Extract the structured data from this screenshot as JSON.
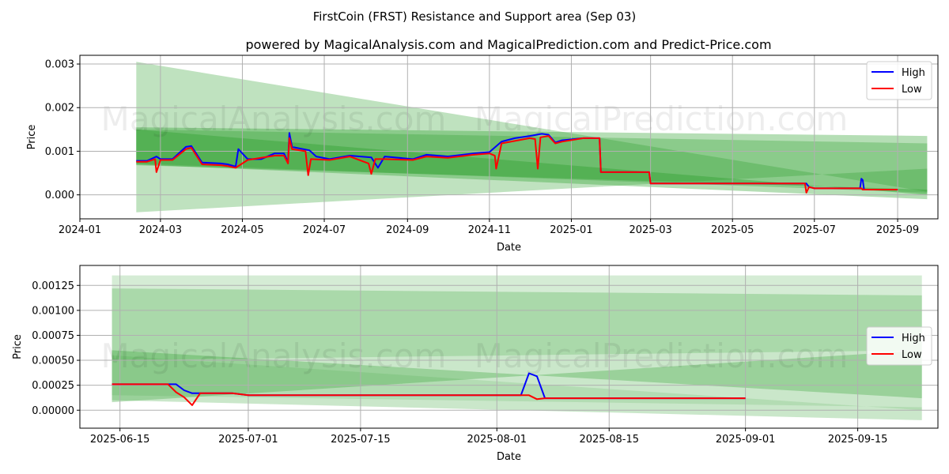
{
  "title": "FirstCoin (FRST) Resistance and Support area (Sep 03)",
  "subtitle": "powered by MagicalAnalysis.com and MagicalPrediction.com and Predict-Price.com",
  "watermark_left": "MagicalAnalysis.com",
  "watermark_right": "MagicalPrediction.com",
  "colors": {
    "high": "#0000ff",
    "low": "#ff0000",
    "band": "#2ca02c",
    "grid": "#b0b0b0"
  },
  "chart_data": [
    {
      "type": "line",
      "name": "full-range",
      "xlabel": "Date",
      "ylabel": "Price",
      "xlim": [
        "2024-01-01",
        "2025-10-01"
      ],
      "ylim": [
        -0.00055,
        0.0032
      ],
      "xticks": [
        "2024-01",
        "2024-03",
        "2024-05",
        "2024-07",
        "2024-09",
        "2024-11",
        "2025-01",
        "2025-03",
        "2025-05",
        "2025-07",
        "2025-09"
      ],
      "yticks": [
        0.0,
        0.001,
        0.002,
        0.003
      ],
      "ytick_labels": [
        "0.000",
        "0.001",
        "0.002",
        "0.003"
      ],
      "legend": {
        "position": "top-right",
        "entries": [
          "High",
          "Low"
        ]
      },
      "bands": [
        {
          "opacity": 0.3,
          "x0": "2024-02-12",
          "x1": "2025-09-23",
          "top": [
            0.00305,
            7e-05
          ],
          "bottom": [
            -0.0004,
            0.0006
          ]
        },
        {
          "opacity": 0.35,
          "x0": "2024-02-12",
          "x1": "2025-09-23",
          "top": [
            0.00155,
            0.00135
          ],
          "bottom": [
            0.0007,
            -0.0001
          ]
        },
        {
          "opacity": 0.3,
          "x0": "2024-02-12",
          "x1": "2025-09-23",
          "top": [
            0.0015,
            0.00118
          ],
          "bottom": [
            0.00072,
            5e-05
          ]
        },
        {
          "opacity": 0.4,
          "x0": "2024-02-12",
          "x1": "2025-09-23",
          "top": [
            0.0015,
            0.0
          ],
          "bottom": [
            0.00068,
            0.00012
          ]
        }
      ],
      "series": [
        {
          "name": "High",
          "x": [
            "2024-02-12",
            "2024-02-20",
            "2024-02-27",
            "2024-03-01",
            "2024-03-10",
            "2024-03-20",
            "2024-03-24",
            "2024-04-01",
            "2024-04-15",
            "2024-04-20",
            "2024-04-26",
            "2024-04-28",
            "2024-05-05",
            "2024-05-15",
            "2024-05-25",
            "2024-06-01",
            "2024-06-04",
            "2024-06-05",
            "2024-06-07",
            "2024-06-10",
            "2024-06-20",
            "2024-06-25",
            "2024-07-05",
            "2024-07-20",
            "2024-08-05",
            "2024-08-10",
            "2024-08-15",
            "2024-09-05",
            "2024-09-15",
            "2024-10-01",
            "2024-10-20",
            "2024-11-01",
            "2024-11-10",
            "2024-11-20",
            "2024-12-01",
            "2024-12-10",
            "2024-12-15",
            "2024-12-20",
            "2024-12-25",
            "2025-01-10",
            "2025-01-22",
            "2025-01-23",
            "2025-02-28",
            "2025-03-01",
            "2025-06-25",
            "2025-06-27",
            "2025-07-01",
            "2025-08-04",
            "2025-08-05",
            "2025-08-06",
            "2025-08-07",
            "2025-09-01"
          ],
          "values": [
            0.00078,
            0.00078,
            0.00088,
            0.00082,
            0.00082,
            0.0011,
            0.00112,
            0.00074,
            0.00072,
            0.0007,
            0.00065,
            0.00105,
            0.00082,
            0.00082,
            0.00095,
            0.00095,
            0.00075,
            0.00142,
            0.0011,
            0.00108,
            0.00102,
            0.00088,
            0.00082,
            0.0009,
            0.00086,
            0.00062,
            0.00088,
            0.00082,
            0.00092,
            0.00088,
            0.00095,
            0.00098,
            0.00122,
            0.0013,
            0.00135,
            0.0014,
            0.00138,
            0.0012,
            0.00125,
            0.0013,
            0.0013,
            0.00052,
            0.00052,
            0.00026,
            0.00026,
            0.00018,
            0.00015,
            0.00015,
            0.00037,
            0.00034,
            0.00012,
            0.00012
          ]
        },
        {
          "name": "Low",
          "x": [
            "2024-02-12",
            "2024-02-20",
            "2024-02-26",
            "2024-02-27",
            "2024-03-01",
            "2024-03-10",
            "2024-03-20",
            "2024-03-24",
            "2024-04-01",
            "2024-04-15",
            "2024-04-20",
            "2024-04-26",
            "2024-05-05",
            "2024-05-25",
            "2024-06-01",
            "2024-06-04",
            "2024-06-05",
            "2024-06-07",
            "2024-06-17",
            "2024-06-19",
            "2024-06-21",
            "2024-07-05",
            "2024-07-20",
            "2024-08-03",
            "2024-08-05",
            "2024-08-08",
            "2024-08-15",
            "2024-09-05",
            "2024-09-15",
            "2024-10-01",
            "2024-10-20",
            "2024-11-01",
            "2024-11-05",
            "2024-11-06",
            "2024-11-10",
            "2024-12-01",
            "2024-12-05",
            "2024-12-07",
            "2024-12-09",
            "2024-12-15",
            "2024-12-20",
            "2024-12-25",
            "2025-01-10",
            "2025-01-22",
            "2025-01-23",
            "2025-02-28",
            "2025-03-01",
            "2025-06-24",
            "2025-06-25",
            "2025-06-27",
            "2025-07-01",
            "2025-08-05",
            "2025-08-06",
            "2025-09-01"
          ],
          "values": [
            0.00076,
            0.00076,
            0.00082,
            0.00052,
            0.0008,
            0.0008,
            0.00105,
            0.00108,
            0.0007,
            0.00068,
            0.00066,
            0.00062,
            0.0008,
            0.0009,
            0.0009,
            0.00072,
            0.0013,
            0.00105,
            0.001,
            0.00045,
            0.00082,
            0.0008,
            0.00088,
            0.00072,
            0.00048,
            0.00082,
            0.00082,
            0.0008,
            0.00088,
            0.00085,
            0.00092,
            0.00095,
            0.0009,
            0.0006,
            0.00118,
            0.0013,
            0.00128,
            0.0006,
            0.00132,
            0.00135,
            0.00118,
            0.00122,
            0.0013,
            0.0013,
            0.00052,
            0.00052,
            0.00026,
            0.00026,
            5e-05,
            0.00018,
            0.00015,
            0.00015,
            0.00012,
            0.00012
          ]
        }
      ]
    },
    {
      "type": "line",
      "name": "zoomed",
      "xlabel": "Date",
      "ylabel": "Price",
      "xlim": [
        "2025-06-10",
        "2025-09-25"
      ],
      "ylim": [
        -0.00018,
        0.00145
      ],
      "xticks": [
        "2025-06-15",
        "2025-07-01",
        "2025-07-15",
        "2025-08-01",
        "2025-08-15",
        "2025-09-01",
        "2025-09-15"
      ],
      "yticks": [
        0.0,
        0.00025,
        0.0005,
        0.00075,
        0.001,
        0.00125
      ],
      "ytick_labels": [
        "0.00000",
        "0.00025",
        "0.00050",
        "0.00075",
        "0.00100",
        "0.00125"
      ],
      "legend": {
        "position": "center-right",
        "entries": [
          "High",
          "Low"
        ]
      },
      "bands": [
        {
          "opacity": 0.2,
          "x0": "2025-06-14",
          "x1": "2025-09-23",
          "top": [
            0.00135,
            0.00135
          ],
          "bottom": [
            0.0005,
            0.0006
          ]
        },
        {
          "opacity": 0.25,
          "x0": "2025-06-14",
          "x1": "2025-09-23",
          "top": [
            0.00122,
            0.00115
          ],
          "bottom": [
            0.0001,
            -0.0001
          ]
        },
        {
          "opacity": 0.3,
          "x0": "2025-06-14",
          "x1": "2025-09-23",
          "top": [
            0.0006,
            0.00012
          ],
          "bottom": [
            8e-05,
            0.0006
          ]
        },
        {
          "opacity": 0.15,
          "x0": "2025-06-14",
          "x1": "2025-09-23",
          "top": [
            0.00055,
            0.0
          ],
          "bottom": [
            0.00015,
            3e-05
          ]
        }
      ],
      "series": [
        {
          "name": "High",
          "x": [
            "2025-06-14",
            "2025-06-21",
            "2025-06-22",
            "2025-06-23",
            "2025-06-24",
            "2025-06-25",
            "2025-06-29",
            "2025-06-30",
            "2025-07-01",
            "2025-08-04",
            "2025-08-05",
            "2025-08-06",
            "2025-08-07",
            "2025-09-01"
          ],
          "values": [
            0.00026,
            0.00026,
            0.00026,
            0.0002,
            0.00017,
            0.00017,
            0.00017,
            0.00016,
            0.00015,
            0.00015,
            0.00037,
            0.00034,
            0.00012,
            0.00012
          ]
        },
        {
          "name": "Low",
          "x": [
            "2025-06-14",
            "2025-06-21",
            "2025-06-22",
            "2025-06-23",
            "2025-06-24",
            "2025-06-25",
            "2025-06-29",
            "2025-06-30",
            "2025-07-01",
            "2025-08-04",
            "2025-08-05",
            "2025-08-06",
            "2025-08-07",
            "2025-09-01"
          ],
          "values": [
            0.00026,
            0.00026,
            0.00018,
            0.00013,
            5e-05,
            0.00017,
            0.00017,
            0.00016,
            0.00015,
            0.00015,
            0.00015,
            0.00011,
            0.00012,
            0.00012
          ]
        }
      ]
    }
  ]
}
